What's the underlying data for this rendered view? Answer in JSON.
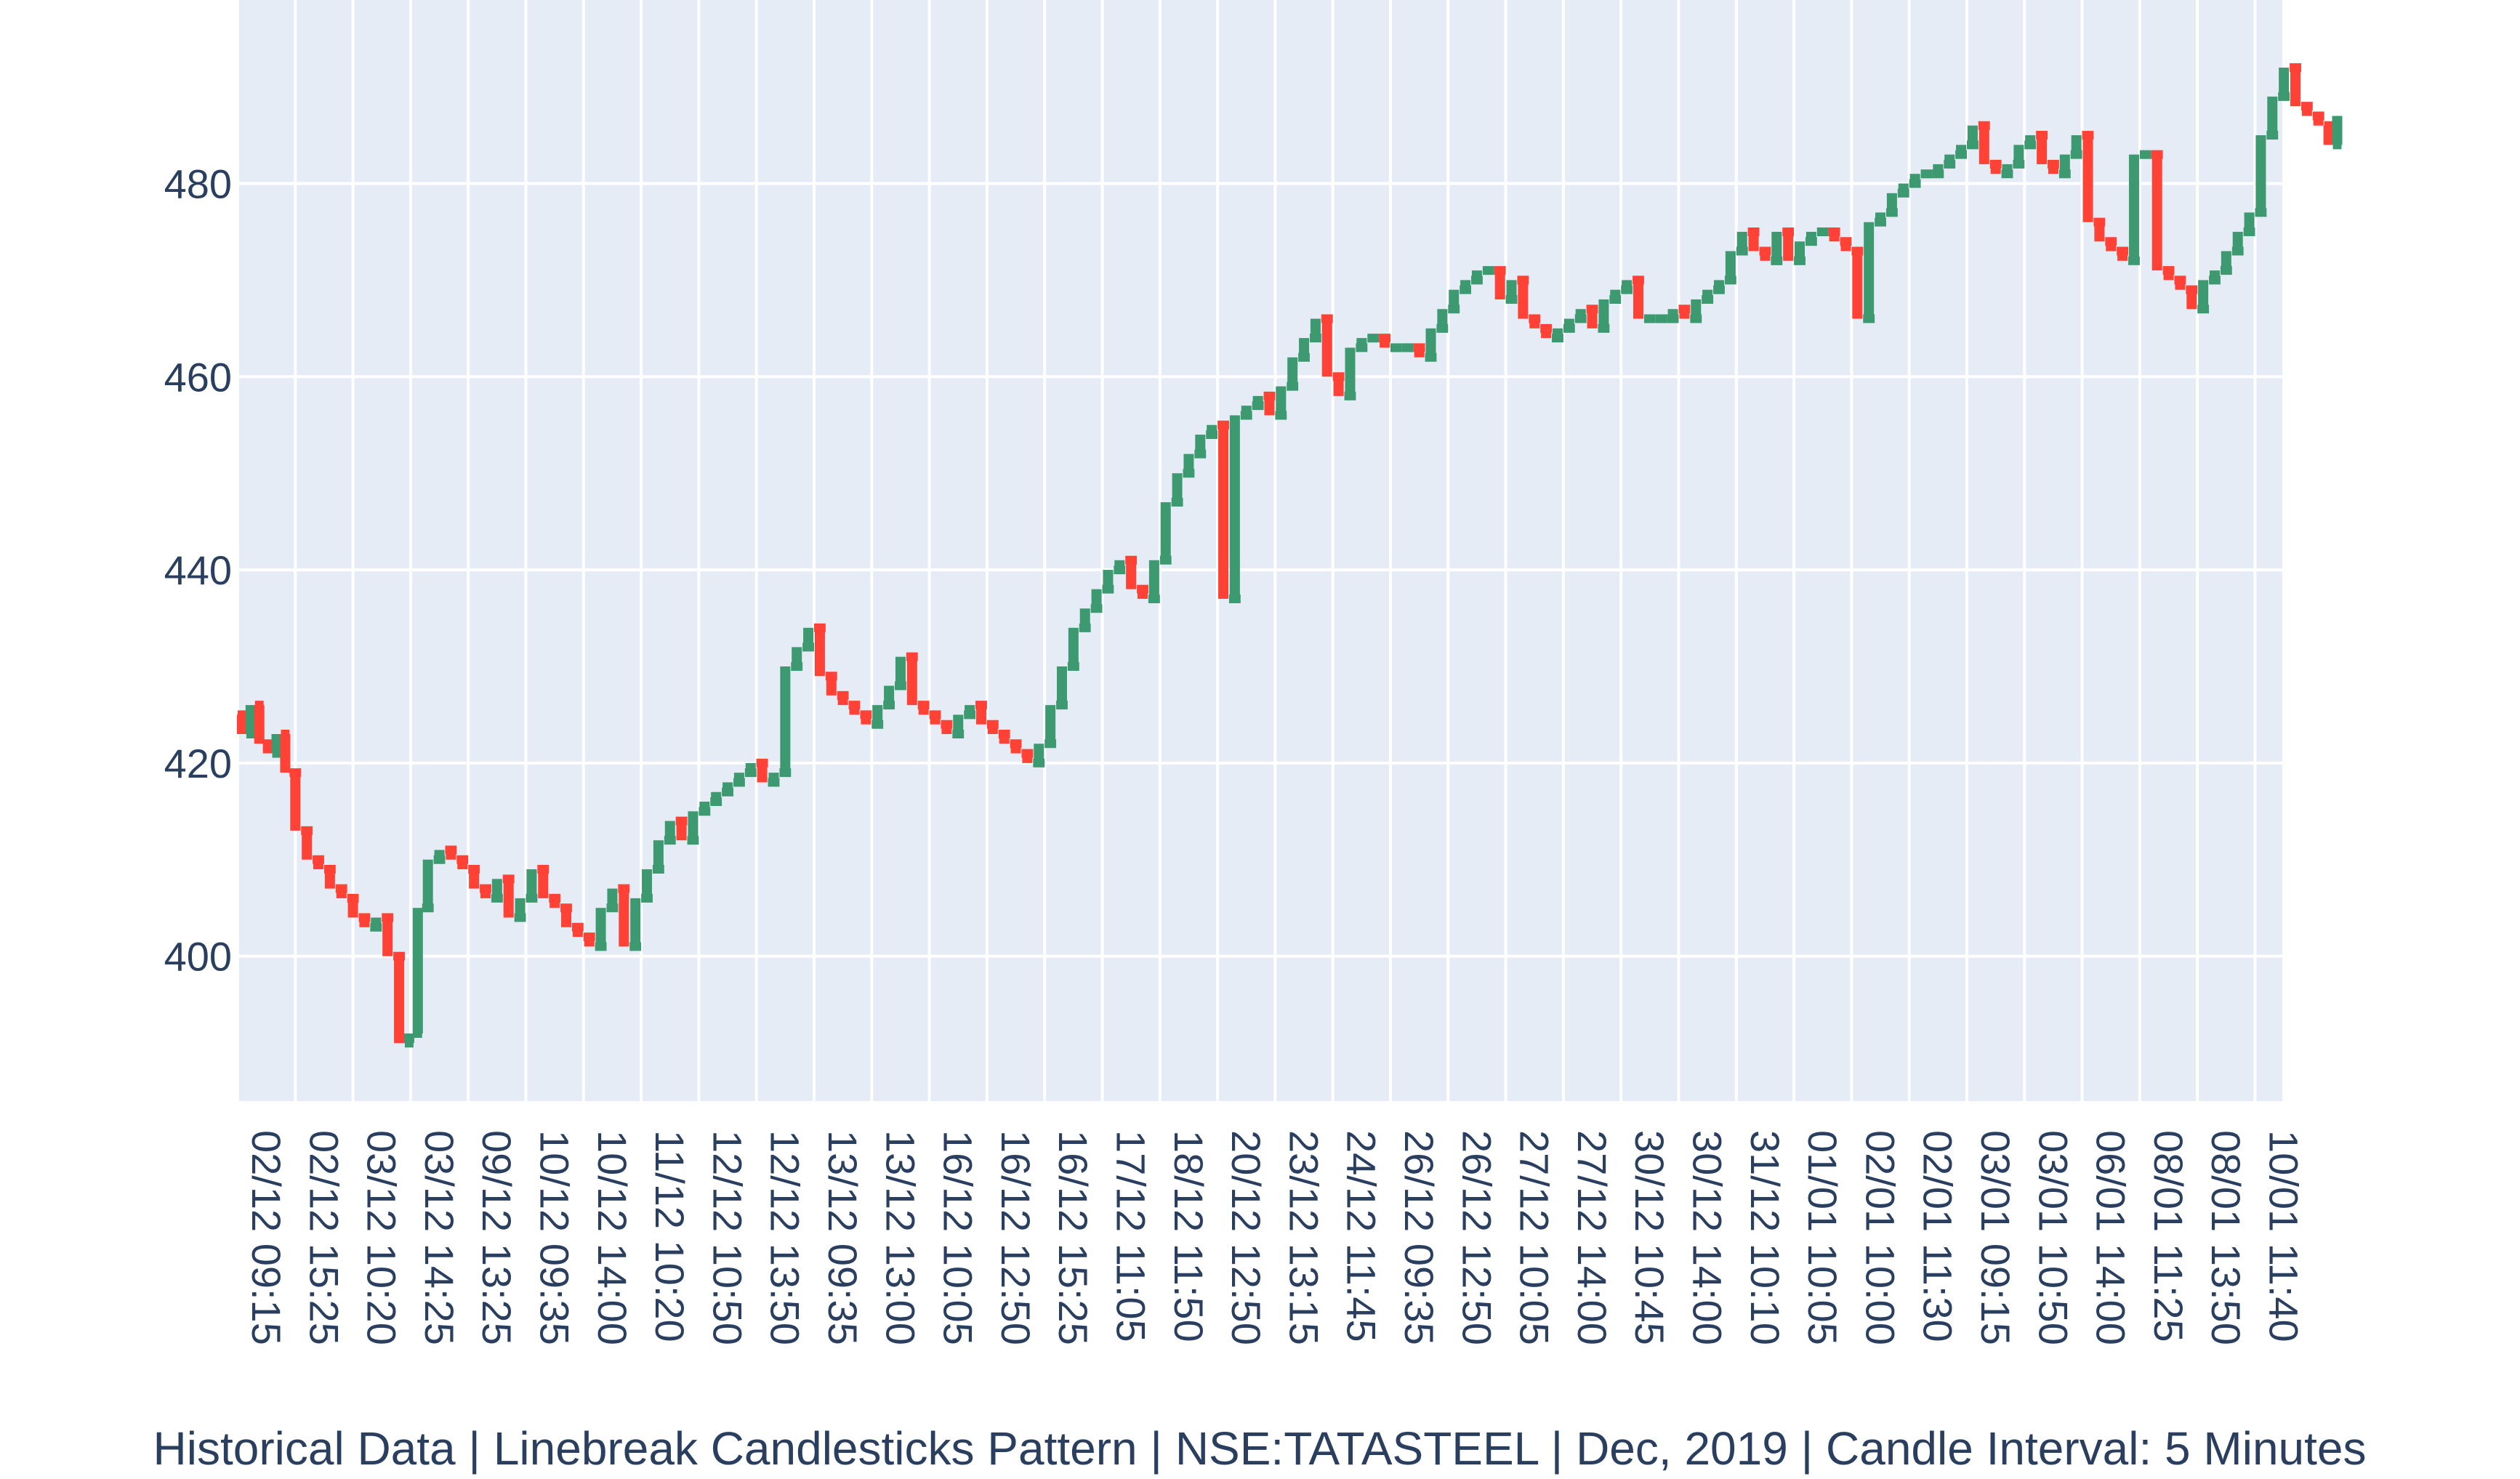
{
  "chart_data": {
    "type": "candlestick",
    "pattern": "linebreak",
    "title": "",
    "xlabel": "Historical Data | Linebreak Candlesticks Pattern | NSE:TATASTEEL | Dec, 2019 | Candle Interval: 5 Minutes",
    "ylabel": "",
    "ylim": [
      385,
      499
    ],
    "y_ticks": [
      400,
      420,
      440,
      460,
      480
    ],
    "x_ticks": [
      "02/12 09:15",
      "02/12 15:25",
      "03/12 10:20",
      "03/12 14:25",
      "09/12 13:25",
      "10/12 09:35",
      "10/12 14:00",
      "11/12 10:20",
      "12/12 10:50",
      "12/12 13:50",
      "13/12 09:35",
      "13/12 13:00",
      "16/12 10:05",
      "16/12 12:50",
      "16/12 15:25",
      "17/12 11:05",
      "18/12 11:50",
      "20/12 12:50",
      "23/12 13:15",
      "24/12 11:45",
      "26/12 09:35",
      "26/12 12:50",
      "27/12 10:05",
      "27/12 14:00",
      "30/12 10:45",
      "30/12 14:00",
      "31/12 10:10",
      "01/01 10:05",
      "02/01 10:00",
      "02/01 11:30",
      "03/01 09:15",
      "03/01 10:50",
      "06/01 14:00",
      "08/01 11:25",
      "08/01 13:50",
      "10/01 11:40"
    ],
    "increasing_color": "#3d9970",
    "decreasing_color": "#ff4136",
    "grid": true,
    "legend": false,
    "price_path": [
      [
        0,
        425
      ],
      [
        0.15,
        423
      ],
      [
        0.3,
        426
      ],
      [
        0.45,
        422
      ],
      [
        0.6,
        421
      ],
      [
        0.75,
        423
      ],
      [
        0.9,
        419
      ],
      [
        1.1,
        413
      ],
      [
        1.3,
        410
      ],
      [
        1.5,
        409
      ],
      [
        1.7,
        407
      ],
      [
        1.9,
        406
      ],
      [
        2.1,
        404
      ],
      [
        2.3,
        403
      ],
      [
        2.5,
        404
      ],
      [
        2.7,
        400
      ],
      [
        2.9,
        391
      ],
      [
        3.05,
        392
      ],
      [
        3.2,
        405
      ],
      [
        3.4,
        410
      ],
      [
        3.6,
        411
      ],
      [
        3.8,
        410
      ],
      [
        4.0,
        409
      ],
      [
        4.2,
        407
      ],
      [
        4.4,
        406
      ],
      [
        4.6,
        408
      ],
      [
        4.8,
        404
      ],
      [
        5.0,
        406
      ],
      [
        5.2,
        409
      ],
      [
        5.4,
        406
      ],
      [
        5.6,
        405
      ],
      [
        5.8,
        403
      ],
      [
        6.0,
        402
      ],
      [
        6.2,
        401
      ],
      [
        6.4,
        405
      ],
      [
        6.6,
        407
      ],
      [
        6.8,
        401
      ],
      [
        7.0,
        406
      ],
      [
        7.2,
        409
      ],
      [
        7.4,
        412
      ],
      [
        7.6,
        414
      ],
      [
        7.8,
        412
      ],
      [
        8.0,
        415
      ],
      [
        8.2,
        416
      ],
      [
        8.4,
        417
      ],
      [
        8.6,
        418
      ],
      [
        8.8,
        419
      ],
      [
        9.0,
        420
      ],
      [
        9.2,
        418
      ],
      [
        9.4,
        419
      ],
      [
        9.6,
        430
      ],
      [
        9.8,
        432
      ],
      [
        10.0,
        434
      ],
      [
        10.2,
        429
      ],
      [
        10.4,
        427
      ],
      [
        10.6,
        426
      ],
      [
        10.8,
        425
      ],
      [
        11.0,
        424
      ],
      [
        11.2,
        426
      ],
      [
        11.4,
        428
      ],
      [
        11.6,
        431
      ],
      [
        11.8,
        426
      ],
      [
        12.0,
        425
      ],
      [
        12.2,
        424
      ],
      [
        12.4,
        423
      ],
      [
        12.6,
        425
      ],
      [
        12.8,
        426
      ],
      [
        13.0,
        424
      ],
      [
        13.2,
        423
      ],
      [
        13.4,
        422
      ],
      [
        13.6,
        421
      ],
      [
        13.8,
        420
      ],
      [
        14.0,
        422
      ],
      [
        14.2,
        426
      ],
      [
        14.4,
        430
      ],
      [
        14.6,
        434
      ],
      [
        14.8,
        436
      ],
      [
        15.0,
        438
      ],
      [
        15.2,
        440
      ],
      [
        15.4,
        441
      ],
      [
        15.6,
        438
      ],
      [
        15.8,
        437
      ],
      [
        16.0,
        441
      ],
      [
        16.2,
        447
      ],
      [
        16.4,
        450
      ],
      [
        16.6,
        452
      ],
      [
        16.8,
        454
      ],
      [
        17.0,
        455
      ],
      [
        17.2,
        437
      ],
      [
        17.4,
        456
      ],
      [
        17.6,
        457
      ],
      [
        17.8,
        458
      ],
      [
        18.0,
        456
      ],
      [
        18.2,
        459
      ],
      [
        18.4,
        462
      ],
      [
        18.6,
        464
      ],
      [
        18.8,
        466
      ],
      [
        19.0,
        460
      ],
      [
        19.2,
        458
      ],
      [
        19.4,
        463
      ],
      [
        19.6,
        464
      ],
      [
        19.8,
        464
      ],
      [
        20.0,
        463
      ],
      [
        20.2,
        463
      ],
      [
        20.4,
        463
      ],
      [
        20.6,
        462
      ],
      [
        20.8,
        465
      ],
      [
        21.0,
        467
      ],
      [
        21.2,
        469
      ],
      [
        21.4,
        470
      ],
      [
        21.6,
        471
      ],
      [
        21.8,
        471
      ],
      [
        22.0,
        468
      ],
      [
        22.2,
        470
      ],
      [
        22.4,
        466
      ],
      [
        22.6,
        465
      ],
      [
        22.8,
        464
      ],
      [
        23.0,
        465
      ],
      [
        23.2,
        466
      ],
      [
        23.4,
        467
      ],
      [
        23.6,
        465
      ],
      [
        23.8,
        468
      ],
      [
        24.0,
        469
      ],
      [
        24.2,
        470
      ],
      [
        24.4,
        466
      ],
      [
        24.6,
        466
      ],
      [
        24.8,
        466
      ],
      [
        25.0,
        467
      ],
      [
        25.2,
        466
      ],
      [
        25.4,
        468
      ],
      [
        25.6,
        469
      ],
      [
        25.8,
        470
      ],
      [
        26.0,
        473
      ],
      [
        26.2,
        475
      ],
      [
        26.4,
        473
      ],
      [
        26.6,
        472
      ],
      [
        26.8,
        475
      ],
      [
        27.0,
        472
      ],
      [
        27.2,
        474
      ],
      [
        27.4,
        475
      ],
      [
        27.6,
        475
      ],
      [
        27.8,
        474
      ],
      [
        28.0,
        473
      ],
      [
        28.2,
        466
      ],
      [
        28.4,
        476
      ],
      [
        28.6,
        477
      ],
      [
        28.8,
        479
      ],
      [
        29.0,
        480
      ],
      [
        29.2,
        481
      ],
      [
        29.4,
        481
      ],
      [
        29.6,
        482
      ],
      [
        29.8,
        483
      ],
      [
        30.0,
        484
      ],
      [
        30.2,
        486
      ],
      [
        30.4,
        482
      ],
      [
        30.6,
        481
      ],
      [
        30.8,
        482
      ],
      [
        31.0,
        484
      ],
      [
        31.2,
        485
      ],
      [
        31.4,
        482
      ],
      [
        31.6,
        481
      ],
      [
        31.8,
        483
      ],
      [
        32.0,
        485
      ],
      [
        32.2,
        476
      ],
      [
        32.4,
        474
      ],
      [
        32.6,
        473
      ],
      [
        32.8,
        472
      ],
      [
        33.0,
        483
      ],
      [
        33.2,
        483
      ],
      [
        33.4,
        471
      ],
      [
        33.6,
        470
      ],
      [
        33.8,
        469
      ],
      [
        34.0,
        467
      ],
      [
        34.2,
        470
      ],
      [
        34.4,
        471
      ],
      [
        34.6,
        473
      ],
      [
        34.8,
        475
      ],
      [
        35.0,
        477
      ],
      [
        35.2,
        485
      ],
      [
        35.4,
        489
      ],
      [
        35.6,
        492
      ],
      [
        35.8,
        488
      ],
      [
        36.0,
        487
      ],
      [
        36.2,
        486
      ],
      [
        36.35,
        484
      ],
      [
        36.5,
        487
      ]
    ]
  }
}
